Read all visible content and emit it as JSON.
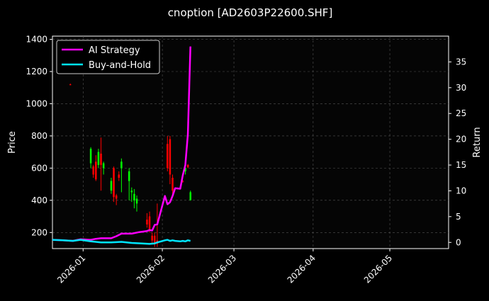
{
  "chart_data": {
    "type": "candlestick+line",
    "title": "cnoption [AD2603P22600.SHF]",
    "ylabel_left": "Price",
    "ylabel_right": "Return",
    "xlabel": "",
    "grid": true,
    "legend_placement": "top-left",
    "x_axis": {
      "type": "date",
      "range": [
        "2025-12-20",
        "2026-05-24"
      ],
      "ticks": [
        "2026-01",
        "2026-02",
        "2026-03",
        "2026-04",
        "2026-05"
      ]
    },
    "y_left": {
      "range": [
        100,
        1420
      ],
      "ticks": [
        200,
        400,
        600,
        800,
        1000,
        1200,
        1400
      ]
    },
    "y_right": {
      "range": [
        -1.2,
        40
      ],
      "ticks": [
        0,
        5,
        10,
        15,
        20,
        25,
        30,
        35
      ]
    },
    "colors": {
      "background": "#000000",
      "up_candle": "#00ff00",
      "down_candle": "#ff0000",
      "ai_strategy": "#ff00ff",
      "buy_and_hold": "#00e5ff",
      "grid": "#555555"
    },
    "candles": [
      {
        "date": "2025-12-27",
        "open": 1120,
        "high": 1125,
        "low": 1115,
        "close": 1118
      },
      {
        "date": "2026-01-04",
        "open": 630,
        "high": 730,
        "low": 600,
        "close": 720
      },
      {
        "date": "2026-01-05",
        "open": 610,
        "high": 620,
        "low": 540,
        "close": 560
      },
      {
        "date": "2026-01-06",
        "open": 640,
        "high": 680,
        "low": 520,
        "close": 530
      },
      {
        "date": "2026-01-07",
        "open": 620,
        "high": 720,
        "low": 600,
        "close": 700
      },
      {
        "date": "2026-01-08",
        "open": 690,
        "high": 790,
        "low": 460,
        "close": 620
      },
      {
        "date": "2026-01-09",
        "open": 600,
        "high": 640,
        "low": 560,
        "close": 630
      },
      {
        "date": "2026-01-12",
        "open": 460,
        "high": 540,
        "low": 440,
        "close": 520
      },
      {
        "date": "2026-01-13",
        "open": 600,
        "high": 610,
        "low": 390,
        "close": 420
      },
      {
        "date": "2026-01-14",
        "open": 430,
        "high": 440,
        "low": 370,
        "close": 410
      },
      {
        "date": "2026-01-15",
        "open": 560,
        "high": 580,
        "low": 520,
        "close": 540
      },
      {
        "date": "2026-01-16",
        "open": 600,
        "high": 660,
        "low": 450,
        "close": 640
      },
      {
        "date": "2026-01-19",
        "open": 520,
        "high": 600,
        "low": 400,
        "close": 580
      },
      {
        "date": "2026-01-20",
        "open": 450,
        "high": 480,
        "low": 390,
        "close": 460
      },
      {
        "date": "2026-01-21",
        "open": 400,
        "high": 470,
        "low": 350,
        "close": 440
      },
      {
        "date": "2026-01-22",
        "open": 380,
        "high": 430,
        "low": 330,
        "close": 410
      },
      {
        "date": "2026-01-26",
        "open": 280,
        "high": 320,
        "low": 230,
        "close": 250
      },
      {
        "date": "2026-01-27",
        "open": 300,
        "high": 330,
        "low": 200,
        "close": 220
      },
      {
        "date": "2026-01-28",
        "open": 180,
        "high": 200,
        "low": 130,
        "close": 150
      },
      {
        "date": "2026-01-29",
        "open": 180,
        "high": 200,
        "low": 110,
        "close": 130
      },
      {
        "date": "2026-01-30",
        "open": 150,
        "high": 380,
        "low": 110,
        "close": 130
      },
      {
        "date": "2026-02-03",
        "open": 750,
        "high": 800,
        "low": 580,
        "close": 600
      },
      {
        "date": "2026-02-04",
        "open": 780,
        "high": 800,
        "low": 500,
        "close": 560
      },
      {
        "date": "2026-02-05",
        "open": 540,
        "high": 560,
        "low": 440,
        "close": 460
      },
      {
        "date": "2026-02-09",
        "open": 520,
        "high": 525,
        "low": 510,
        "close": 515
      },
      {
        "date": "2026-02-10",
        "open": 580,
        "high": 620,
        "low": 560,
        "close": 600
      },
      {
        "date": "2026-02-11",
        "open": 620,
        "high": 625,
        "low": 600,
        "close": 605
      },
      {
        "date": "2026-02-12",
        "open": 400,
        "high": 460,
        "low": 400,
        "close": 450
      }
    ],
    "series": [
      {
        "name": "AI Strategy",
        "x": [
          "2025-12-20",
          "2025-12-24",
          "2025-12-28",
          "2025-12-31",
          "2026-01-04",
          "2026-01-06",
          "2026-01-08",
          "2026-01-12",
          "2026-01-14",
          "2026-01-16",
          "2026-01-20",
          "2026-01-23",
          "2026-01-26",
          "2026-01-27",
          "2026-01-28",
          "2026-01-29",
          "2026-01-30",
          "2026-02-02",
          "2026-02-03",
          "2026-02-04",
          "2026-02-05",
          "2026-02-06",
          "2026-02-08",
          "2026-02-09",
          "2026-02-10",
          "2026-02-11",
          "2026-02-12"
        ],
        "values": [
          0.5,
          0.4,
          0.3,
          0.6,
          0.5,
          0.7,
          0.8,
          0.8,
          1.2,
          1.7,
          1.7,
          2.0,
          2.2,
          2.4,
          2.3,
          3.4,
          3.5,
          9.0,
          7.4,
          7.8,
          9.0,
          10.5,
          10.4,
          13.0,
          15.0,
          21.0,
          38.0
        ]
      },
      {
        "name": "Buy-and-Hold",
        "x": [
          "2025-12-20",
          "2025-12-24",
          "2025-12-28",
          "2025-12-31",
          "2026-01-04",
          "2026-01-08",
          "2026-01-12",
          "2026-01-16",
          "2026-01-20",
          "2026-01-24",
          "2026-01-27",
          "2026-01-29",
          "2026-01-30",
          "2026-02-02",
          "2026-02-03",
          "2026-02-04",
          "2026-02-05",
          "2026-02-06",
          "2026-02-08",
          "2026-02-09",
          "2026-02-10",
          "2026-02-11",
          "2026-02-12"
        ],
        "values": [
          0.5,
          0.4,
          0.3,
          0.5,
          0.2,
          0.0,
          0.0,
          0.1,
          -0.1,
          -0.2,
          -0.3,
          -0.2,
          0.0,
          0.4,
          0.5,
          0.3,
          0.4,
          0.3,
          0.2,
          0.3,
          0.2,
          0.4,
          0.3
        ]
      }
    ]
  }
}
